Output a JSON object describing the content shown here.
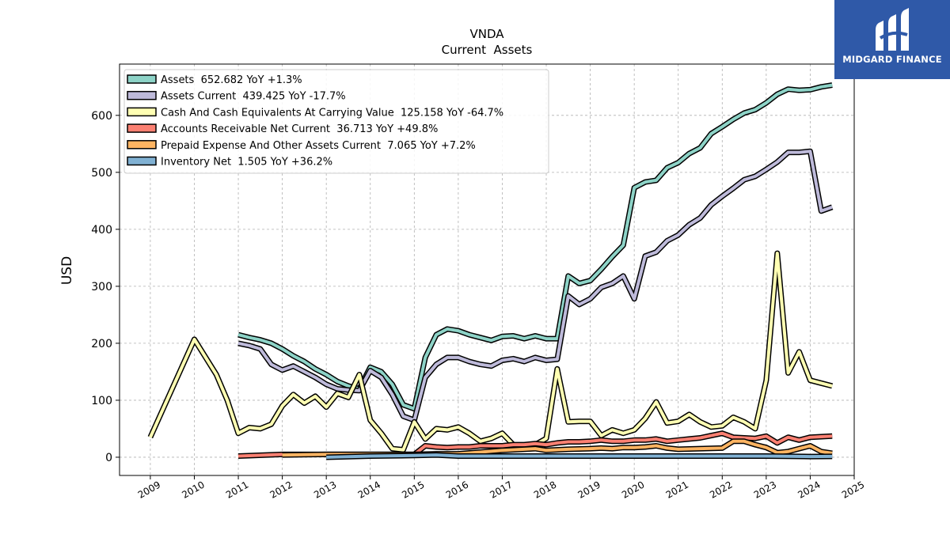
{
  "logo": {
    "text": "MIDGARD FINANCE",
    "color": "#2f59a8"
  },
  "chart_data": {
    "type": "line",
    "title": "VNDA",
    "subtitle": "Current  Assets",
    "ylabel": "USD",
    "xlabel": "",
    "xlim": [
      2008.3,
      2025.0
    ],
    "ylim": [
      -32,
      690
    ],
    "x_ticks": [
      "2009",
      "2010",
      "2011",
      "2012",
      "2013",
      "2014",
      "2015",
      "2016",
      "2017",
      "2018",
      "2019",
      "2020",
      "2021",
      "2022",
      "2023",
      "2024",
      "2025"
    ],
    "y_ticks": [
      0,
      100,
      200,
      300,
      400,
      500,
      600
    ],
    "grid": true,
    "legend_position": "top-left",
    "series": [
      {
        "name": "Assets  652.682 YoY +1.3%",
        "color": "#8dd3c7",
        "points": [
          [
            2011.0,
            215
          ],
          [
            2011.25,
            210
          ],
          [
            2011.5,
            206
          ],
          [
            2011.75,
            200
          ],
          [
            2012.0,
            190
          ],
          [
            2012.25,
            178
          ],
          [
            2012.5,
            168
          ],
          [
            2012.75,
            155
          ],
          [
            2013.0,
            145
          ],
          [
            2013.25,
            133
          ],
          [
            2013.5,
            125
          ],
          [
            2013.75,
            120
          ],
          [
            2014.0,
            158
          ],
          [
            2014.25,
            150
          ],
          [
            2014.5,
            128
          ],
          [
            2014.75,
            92
          ],
          [
            2015.0,
            85
          ],
          [
            2015.25,
            175
          ],
          [
            2015.5,
            215
          ],
          [
            2015.75,
            225
          ],
          [
            2016.0,
            222
          ],
          [
            2016.25,
            215
          ],
          [
            2016.5,
            210
          ],
          [
            2016.75,
            205
          ],
          [
            2017.0,
            212
          ],
          [
            2017.25,
            213
          ],
          [
            2017.5,
            208
          ],
          [
            2017.75,
            213
          ],
          [
            2018.0,
            208
          ],
          [
            2018.25,
            208
          ],
          [
            2018.5,
            318
          ],
          [
            2018.75,
            305
          ],
          [
            2019.0,
            310
          ],
          [
            2019.25,
            330
          ],
          [
            2019.5,
            352
          ],
          [
            2019.75,
            372
          ],
          [
            2020.0,
            473
          ],
          [
            2020.25,
            483
          ],
          [
            2020.5,
            486
          ],
          [
            2020.75,
            508
          ],
          [
            2021.0,
            517
          ],
          [
            2021.25,
            533
          ],
          [
            2021.5,
            543
          ],
          [
            2021.75,
            568
          ],
          [
            2022.0,
            580
          ],
          [
            2022.25,
            593
          ],
          [
            2022.5,
            604
          ],
          [
            2022.75,
            610
          ],
          [
            2023.0,
            622
          ],
          [
            2023.25,
            637
          ],
          [
            2023.5,
            646
          ],
          [
            2023.75,
            644
          ],
          [
            2024.0,
            645
          ],
          [
            2024.25,
            650
          ],
          [
            2024.5,
            653
          ]
        ]
      },
      {
        "name": "Assets Current  439.425 YoY -17.7%",
        "color": "#bebada",
        "points": [
          [
            2011.0,
            200
          ],
          [
            2011.25,
            196
          ],
          [
            2011.5,
            190
          ],
          [
            2011.75,
            163
          ],
          [
            2012.0,
            153
          ],
          [
            2012.25,
            160
          ],
          [
            2012.5,
            150
          ],
          [
            2012.75,
            140
          ],
          [
            2013.0,
            128
          ],
          [
            2013.25,
            120
          ],
          [
            2013.5,
            118
          ],
          [
            2013.75,
            117
          ],
          [
            2014.0,
            152
          ],
          [
            2014.25,
            140
          ],
          [
            2014.5,
            110
          ],
          [
            2014.75,
            72
          ],
          [
            2015.0,
            65
          ],
          [
            2015.25,
            140
          ],
          [
            2015.5,
            163
          ],
          [
            2015.75,
            175
          ],
          [
            2016.0,
            175
          ],
          [
            2016.25,
            168
          ],
          [
            2016.5,
            163
          ],
          [
            2016.75,
            160
          ],
          [
            2017.0,
            170
          ],
          [
            2017.25,
            173
          ],
          [
            2017.5,
            168
          ],
          [
            2017.75,
            175
          ],
          [
            2018.0,
            170
          ],
          [
            2018.25,
            172
          ],
          [
            2018.5,
            283
          ],
          [
            2018.75,
            268
          ],
          [
            2019.0,
            278
          ],
          [
            2019.25,
            298
          ],
          [
            2019.5,
            305
          ],
          [
            2019.75,
            318
          ],
          [
            2020.0,
            278
          ],
          [
            2020.25,
            353
          ],
          [
            2020.5,
            360
          ],
          [
            2020.75,
            380
          ],
          [
            2021.0,
            390
          ],
          [
            2021.25,
            408
          ],
          [
            2021.5,
            420
          ],
          [
            2021.75,
            443
          ],
          [
            2022.0,
            458
          ],
          [
            2022.25,
            472
          ],
          [
            2022.5,
            487
          ],
          [
            2022.75,
            493
          ],
          [
            2023.0,
            505
          ],
          [
            2023.25,
            518
          ],
          [
            2023.5,
            535
          ],
          [
            2023.75,
            535
          ],
          [
            2024.0,
            537
          ],
          [
            2024.25,
            432
          ],
          [
            2024.5,
            439
          ]
        ]
      },
      {
        "name": "Cash And Cash Equivalents At Carrying Value  125.158 YoY -64.7%",
        "color": "#ffffb3",
        "points": [
          [
            2009.0,
            35
          ],
          [
            2010.0,
            207
          ],
          [
            2010.5,
            145
          ],
          [
            2010.75,
            100
          ],
          [
            2011.0,
            42
          ],
          [
            2011.25,
            52
          ],
          [
            2011.5,
            50
          ],
          [
            2011.75,
            58
          ],
          [
            2012.0,
            90
          ],
          [
            2012.25,
            110
          ],
          [
            2012.5,
            95
          ],
          [
            2012.75,
            107
          ],
          [
            2013.0,
            88
          ],
          [
            2013.25,
            112
          ],
          [
            2013.5,
            105
          ],
          [
            2013.75,
            145
          ],
          [
            2014.0,
            65
          ],
          [
            2014.25,
            42
          ],
          [
            2014.5,
            15
          ],
          [
            2014.75,
            13
          ],
          [
            2015.0,
            62
          ],
          [
            2015.25,
            32
          ],
          [
            2015.5,
            50
          ],
          [
            2015.75,
            48
          ],
          [
            2016.0,
            53
          ],
          [
            2016.25,
            42
          ],
          [
            2016.5,
            28
          ],
          [
            2016.75,
            33
          ],
          [
            2017.0,
            42
          ],
          [
            2017.25,
            22
          ],
          [
            2017.5,
            20
          ],
          [
            2017.75,
            22
          ],
          [
            2018.0,
            33
          ],
          [
            2018.25,
            155
          ],
          [
            2018.5,
            62
          ],
          [
            2018.75,
            63
          ],
          [
            2019.0,
            63
          ],
          [
            2019.25,
            38
          ],
          [
            2019.5,
            48
          ],
          [
            2019.75,
            42
          ],
          [
            2020.0,
            48
          ],
          [
            2020.25,
            68
          ],
          [
            2020.5,
            97
          ],
          [
            2020.75,
            60
          ],
          [
            2021.0,
            63
          ],
          [
            2021.25,
            75
          ],
          [
            2021.5,
            62
          ],
          [
            2021.75,
            53
          ],
          [
            2022.0,
            55
          ],
          [
            2022.25,
            70
          ],
          [
            2022.5,
            62
          ],
          [
            2022.75,
            50
          ],
          [
            2023.0,
            135
          ],
          [
            2023.25,
            358
          ],
          [
            2023.5,
            148
          ],
          [
            2023.75,
            185
          ],
          [
            2024.0,
            135
          ],
          [
            2024.25,
            130
          ],
          [
            2024.5,
            125
          ]
        ]
      },
      {
        "name": "Accounts Receivable Net Current  36.713 YoY +49.8%",
        "color": "#fb8072",
        "points": [
          [
            2011.0,
            2
          ],
          [
            2012.0,
            5
          ],
          [
            2015.0,
            5
          ],
          [
            2015.25,
            20
          ],
          [
            2015.5,
            18
          ],
          [
            2015.75,
            17
          ],
          [
            2016.0,
            18
          ],
          [
            2016.25,
            18
          ],
          [
            2016.5,
            20
          ],
          [
            2016.75,
            20
          ],
          [
            2017.0,
            20
          ],
          [
            2017.25,
            22
          ],
          [
            2017.5,
            22
          ],
          [
            2017.75,
            24
          ],
          [
            2018.0,
            22
          ],
          [
            2018.25,
            25
          ],
          [
            2018.5,
            27
          ],
          [
            2018.75,
            27
          ],
          [
            2019.0,
            28
          ],
          [
            2019.25,
            30
          ],
          [
            2019.5,
            28
          ],
          [
            2019.75,
            28
          ],
          [
            2020.0,
            30
          ],
          [
            2020.25,
            30
          ],
          [
            2020.5,
            32
          ],
          [
            2020.75,
            28
          ],
          [
            2021.0,
            30
          ],
          [
            2021.25,
            32
          ],
          [
            2021.5,
            34
          ],
          [
            2021.75,
            38
          ],
          [
            2022.0,
            42
          ],
          [
            2022.25,
            35
          ],
          [
            2022.5,
            34
          ],
          [
            2022.75,
            33
          ],
          [
            2023.0,
            37
          ],
          [
            2023.25,
            25
          ],
          [
            2023.5,
            35
          ],
          [
            2023.75,
            30
          ],
          [
            2024.0,
            35
          ],
          [
            2024.25,
            36
          ],
          [
            2024.5,
            37
          ]
        ]
      },
      {
        "name": "Prepaid Expense And Other Assets Current  7.065 YoY +7.2%",
        "color": "#fdb462",
        "points": [
          [
            2012.0,
            4
          ],
          [
            2013.0,
            5
          ],
          [
            2014.0,
            5
          ],
          [
            2015.0,
            5
          ],
          [
            2015.5,
            6
          ],
          [
            2016.0,
            6
          ],
          [
            2016.5,
            9
          ],
          [
            2017.0,
            12
          ],
          [
            2017.5,
            14
          ],
          [
            2017.75,
            15
          ],
          [
            2018.0,
            12
          ],
          [
            2018.5,
            14
          ],
          [
            2019.0,
            15
          ],
          [
            2019.25,
            16
          ],
          [
            2019.5,
            15
          ],
          [
            2019.75,
            17
          ],
          [
            2020.0,
            17
          ],
          [
            2020.25,
            18
          ],
          [
            2020.5,
            20
          ],
          [
            2020.75,
            16
          ],
          [
            2021.0,
            14
          ],
          [
            2021.5,
            15
          ],
          [
            2022.0,
            16
          ],
          [
            2022.25,
            28
          ],
          [
            2022.5,
            28
          ],
          [
            2022.75,
            22
          ],
          [
            2023.0,
            17
          ],
          [
            2023.25,
            8
          ],
          [
            2023.5,
            10
          ],
          [
            2023.75,
            15
          ],
          [
            2024.0,
            20
          ],
          [
            2024.25,
            10
          ],
          [
            2024.5,
            7
          ]
        ]
      },
      {
        "name": "Inventory Net  1.505 YoY +36.2%",
        "color": "#80b1d3",
        "points": [
          [
            2013.0,
            0
          ],
          [
            2014.0,
            2
          ],
          [
            2015.0,
            3
          ],
          [
            2015.5,
            4
          ],
          [
            2016.0,
            2
          ],
          [
            2017.0,
            2
          ],
          [
            2018.0,
            2
          ],
          [
            2019.0,
            2
          ],
          [
            2020.0,
            2
          ],
          [
            2021.0,
            2
          ],
          [
            2022.0,
            2
          ],
          [
            2023.0,
            2
          ],
          [
            2024.0,
            1.2
          ],
          [
            2024.5,
            1.5
          ]
        ]
      }
    ]
  }
}
